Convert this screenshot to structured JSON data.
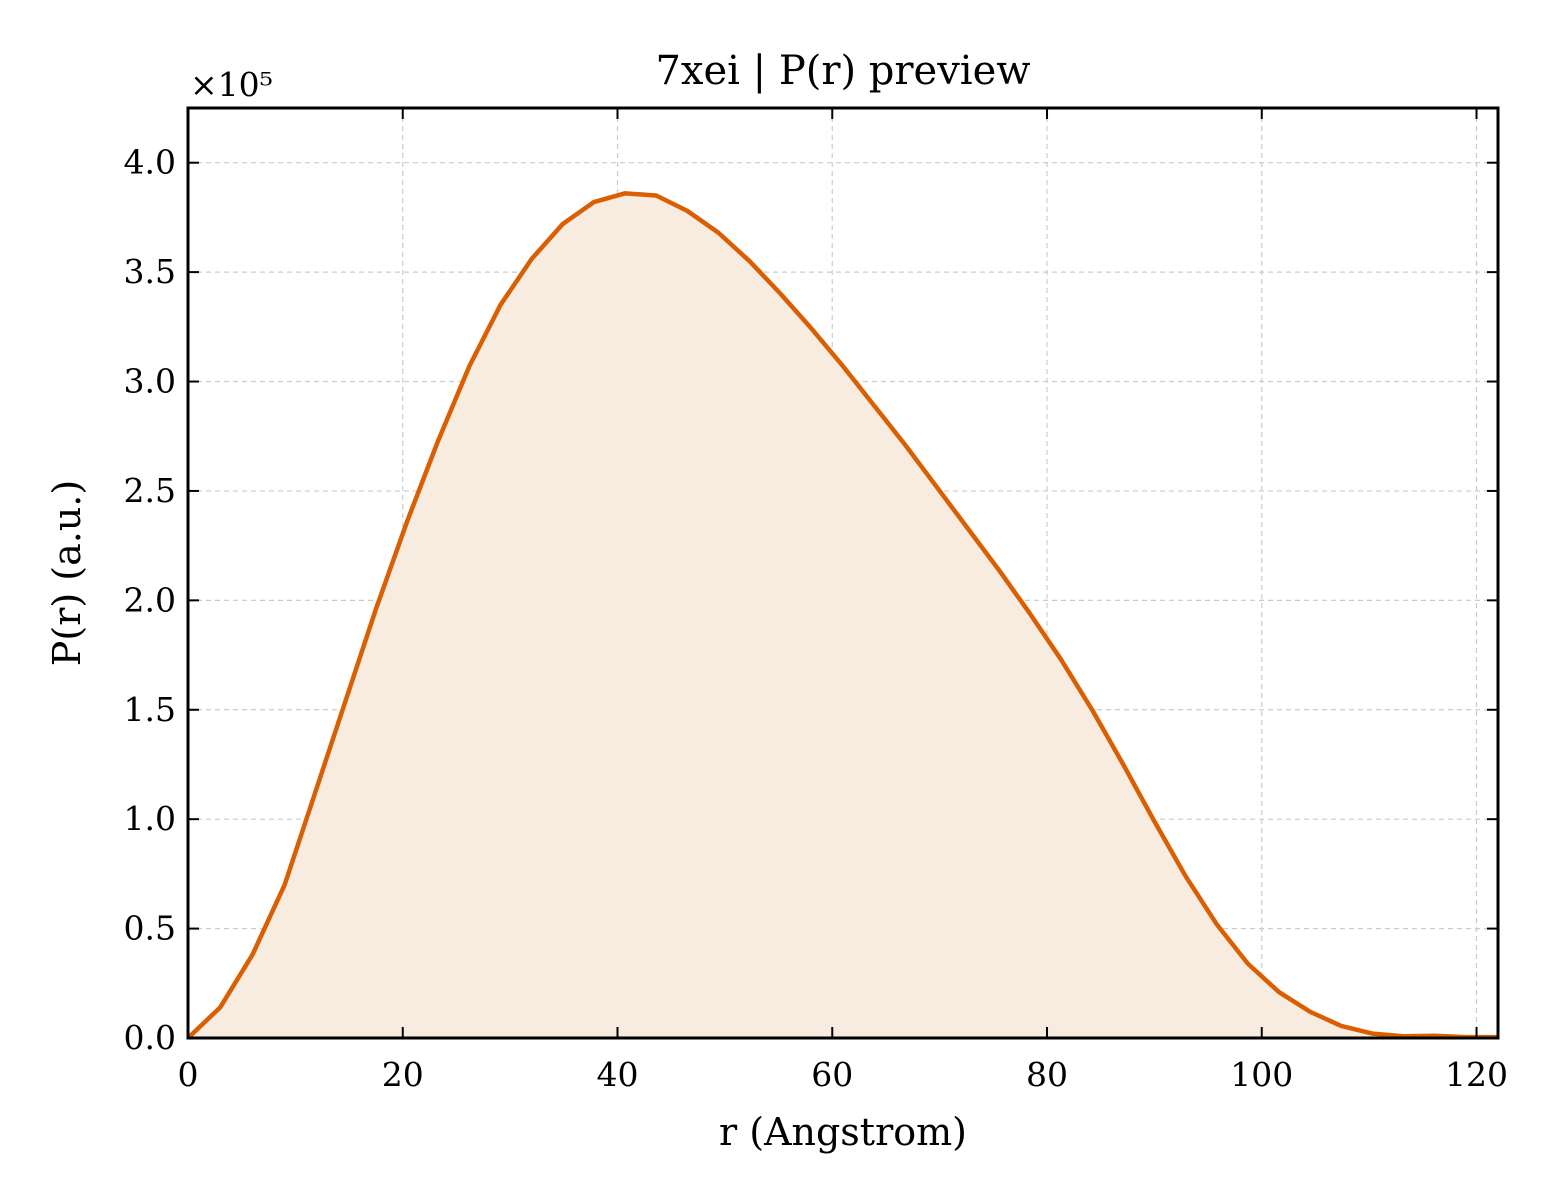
{
  "chart_data": {
    "type": "area",
    "title": "7xei | P(r) preview",
    "xlabel": "r (Angstrom)",
    "ylabel": "P(r) (a.u.)",
    "y_multiplier_label": "×10⁵",
    "xlim": [
      0,
      122
    ],
    "ylim": [
      0,
      4.25
    ],
    "y_scale_factor": 100000,
    "xticks": [
      0,
      20,
      40,
      60,
      80,
      100,
      120
    ],
    "yticks": [
      0.0,
      0.5,
      1.0,
      1.5,
      2.0,
      2.5,
      3.0,
      3.5,
      4.0
    ],
    "xtick_labels": [
      "0",
      "20",
      "40",
      "60",
      "80",
      "100",
      "120"
    ],
    "ytick_labels": [
      "0.0",
      "0.5",
      "1.0",
      "1.5",
      "2.0",
      "2.5",
      "3.0",
      "3.5",
      "4.0"
    ],
    "grid": true,
    "series": [
      {
        "line_color": "#d95f02",
        "fill_color": "#f8ebe0",
        "x": [
          0,
          3,
          6,
          9,
          11.7,
          14.6,
          17.5,
          20.4,
          23.3,
          26.2,
          29.1,
          32,
          34.9,
          37.8,
          40.7,
          43.6,
          46.5,
          49.4,
          52.3,
          55.2,
          58.1,
          61,
          63.9,
          66.8,
          69.7,
          72.6,
          75.5,
          78.4,
          81.3,
          84.2,
          87.1,
          90,
          92.9,
          95.8,
          98.7,
          101.6,
          104.5,
          107.4,
          110.3,
          113.2,
          116.1,
          119,
          122
        ],
        "y": [
          0.0,
          0.14,
          0.38,
          0.7,
          1.1,
          1.53,
          1.96,
          2.36,
          2.73,
          3.07,
          3.35,
          3.56,
          3.72,
          3.82,
          3.86,
          3.85,
          3.78,
          3.68,
          3.55,
          3.4,
          3.24,
          3.07,
          2.89,
          2.71,
          2.52,
          2.33,
          2.14,
          1.94,
          1.73,
          1.5,
          1.25,
          0.99,
          0.74,
          0.52,
          0.34,
          0.21,
          0.12,
          0.055,
          0.02,
          0.008,
          0.01,
          0.004,
          0.004
        ]
      }
    ]
  }
}
